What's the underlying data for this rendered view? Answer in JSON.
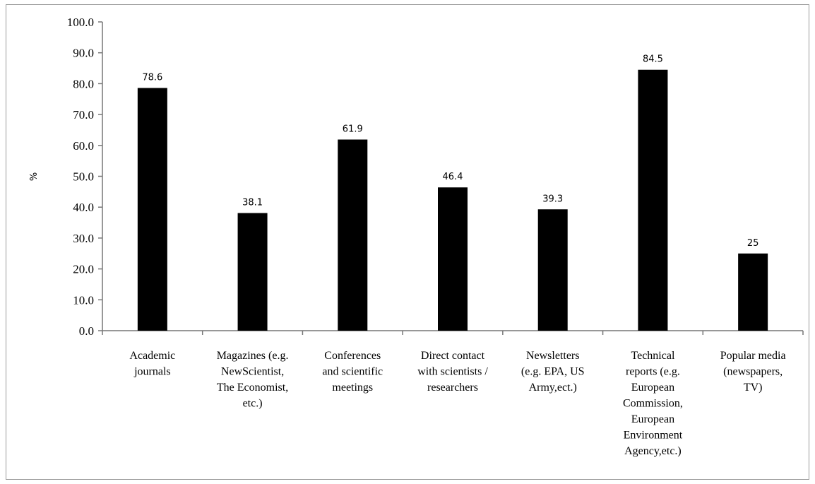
{
  "chart_data": {
    "type": "bar",
    "ylabel": "%",
    "ylim": [
      0,
      100
    ],
    "yticks": [
      "0.0",
      "10.0",
      "20.0",
      "30.0",
      "40.0",
      "50.0",
      "60.0",
      "70.0",
      "80.0",
      "90.0",
      "100.0"
    ],
    "grid": false,
    "legend": "none",
    "bar_color": "#000000",
    "categories": [
      [
        "Academic",
        "journals"
      ],
      [
        "Magazines (e.g.",
        "NewScientist,",
        "The Economist,",
        "etc.)"
      ],
      [
        "Conferences",
        "and scientific",
        "meetings"
      ],
      [
        "Direct contact",
        "with scientists /",
        "researchers"
      ],
      [
        "Newsletters",
        "(e.g. EPA, US",
        "Army,ect.)"
      ],
      [
        "Technical",
        "reports (e.g.",
        "European",
        "Commission,",
        "European",
        "Environment",
        "Agency,etc.)"
      ],
      [
        "Popular media",
        "(newspapers,",
        "TV)"
      ]
    ],
    "values": [
      78.6,
      38.1,
      61.9,
      46.4,
      39.3,
      84.5,
      25
    ],
    "data_labels": [
      "78.6",
      "38.1",
      "61.9",
      "46.4",
      "39.3",
      "84.5",
      "25"
    ]
  }
}
